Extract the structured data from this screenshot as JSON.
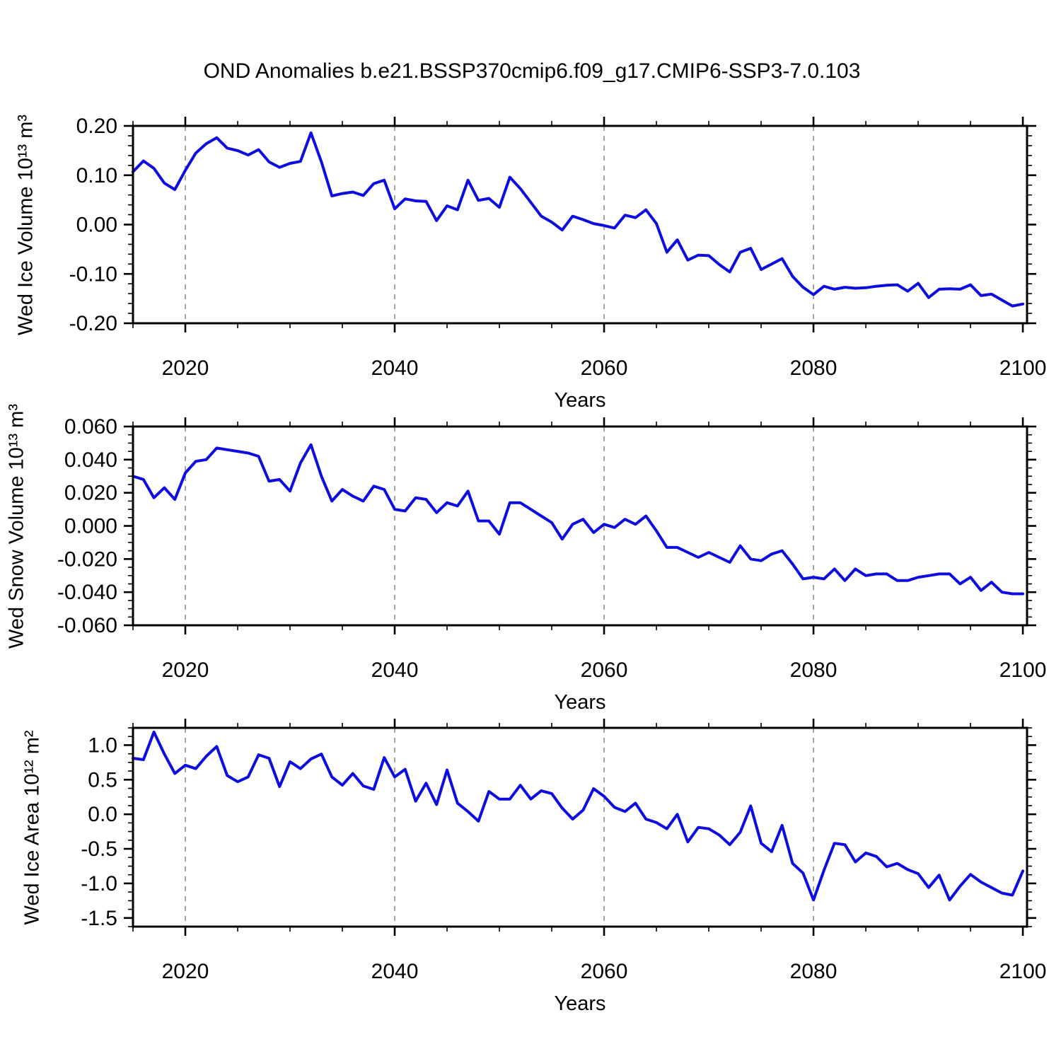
{
  "title": "OND Anomalies b.e21.BSSP370cmip6.f09_g17.CMIP6-SSP3-7.0.103",
  "xlabel": "Years",
  "colors": {
    "line": "#0d0ddf",
    "grid": "#888888",
    "axis": "#000000"
  },
  "x": {
    "years_start": 2015,
    "years_step": 1,
    "ticks_major": [
      2020,
      2040,
      2060,
      2080,
      2100
    ],
    "tick_labels": [
      "2020",
      "2040",
      "2060",
      "2080",
      "2100"
    ],
    "minor_start": 2015,
    "minor_step": 5,
    "grid_years": [
      2020,
      2040,
      2060,
      2080
    ]
  },
  "chart_data": [
    {
      "type": "line",
      "name": "wed-ice-volume",
      "ylabel": "Wed Ice Volume 10¹³ m³",
      "ylim": [
        -0.2,
        0.2
      ],
      "yticks": [
        0.2,
        0.1,
        0.0,
        -0.1,
        -0.2
      ],
      "ytick_labels": [
        "0.20",
        "0.10",
        "0.00",
        "-0.10",
        "-0.20"
      ],
      "yminor": 0.02,
      "values": [
        0.107,
        0.129,
        0.114,
        0.084,
        0.071,
        0.11,
        0.145,
        0.164,
        0.176,
        0.155,
        0.15,
        0.141,
        0.152,
        0.127,
        0.116,
        0.124,
        0.128,
        0.186,
        0.127,
        0.058,
        0.063,
        0.066,
        0.059,
        0.083,
        0.09,
        0.032,
        0.052,
        0.048,
        0.047,
        0.008,
        0.038,
        0.03,
        0.09,
        0.049,
        0.053,
        0.035,
        0.096,
        0.073,
        0.045,
        0.017,
        0.005,
        -0.011,
        0.017,
        0.01,
        0.002,
        -0.002,
        -0.007,
        0.019,
        0.014,
        0.03,
        0.002,
        -0.056,
        -0.031,
        -0.072,
        -0.062,
        -0.063,
        -0.081,
        -0.096,
        -0.056,
        -0.048,
        -0.091,
        -0.08,
        -0.069,
        -0.105,
        -0.127,
        -0.142,
        -0.125,
        -0.131,
        -0.127,
        -0.129,
        -0.128,
        -0.125,
        -0.123,
        -0.122,
        -0.135,
        -0.119,
        -0.148,
        -0.131,
        -0.13,
        -0.131,
        -0.122,
        -0.144,
        -0.141,
        -0.153,
        -0.165,
        -0.161
      ]
    },
    {
      "type": "line",
      "name": "wed-snow-volume",
      "ylabel": "Wed Snow Volume 10¹³ m³",
      "ylim": [
        -0.06,
        0.06
      ],
      "yticks": [
        0.06,
        0.04,
        0.02,
        0.0,
        -0.02,
        -0.04,
        -0.06
      ],
      "ytick_labels": [
        "0.060",
        "0.040",
        "0.020",
        "0.000",
        "-0.020",
        "-0.040",
        "-0.060"
      ],
      "yminor": 0.005,
      "values": [
        0.03,
        0.028,
        0.017,
        0.023,
        0.016,
        0.032,
        0.039,
        0.04,
        0.047,
        0.046,
        0.045,
        0.044,
        0.042,
        0.027,
        0.028,
        0.021,
        0.038,
        0.049,
        0.03,
        0.015,
        0.022,
        0.018,
        0.015,
        0.024,
        0.022,
        0.01,
        0.009,
        0.017,
        0.016,
        0.008,
        0.014,
        0.012,
        0.021,
        0.003,
        0.003,
        -0.005,
        0.014,
        0.014,
        0.01,
        0.006,
        0.002,
        -0.008,
        0.001,
        0.004,
        -0.004,
        0.001,
        -0.001,
        0.004,
        0.001,
        0.006,
        -0.003,
        -0.013,
        -0.013,
        -0.016,
        -0.019,
        -0.016,
        -0.019,
        -0.022,
        -0.012,
        -0.02,
        -0.021,
        -0.017,
        -0.015,
        -0.023,
        -0.032,
        -0.031,
        -0.032,
        -0.026,
        -0.033,
        -0.026,
        -0.03,
        -0.029,
        -0.029,
        -0.033,
        -0.033,
        -0.031,
        -0.03,
        -0.029,
        -0.029,
        -0.035,
        -0.031,
        -0.039,
        -0.034,
        -0.04,
        -0.041,
        -0.041
      ]
    },
    {
      "type": "line",
      "name": "wed-ice-area",
      "ylabel": "Wed Ice Area 10¹² m²",
      "ylim": [
        -1.625,
        1.25
      ],
      "yticks": [
        1.0,
        0.5,
        0.0,
        -0.5,
        -1.0,
        -1.5
      ],
      "ytick_labels": [
        "1.0",
        "0.5",
        "0.0",
        "-0.5",
        "-1.0",
        "-1.5"
      ],
      "yminor": 0.125,
      "values": [
        0.81,
        0.79,
        1.19,
        0.87,
        0.59,
        0.71,
        0.66,
        0.84,
        0.98,
        0.56,
        0.47,
        0.54,
        0.86,
        0.81,
        0.4,
        0.76,
        0.66,
        0.8,
        0.87,
        0.54,
        0.42,
        0.59,
        0.41,
        0.36,
        0.82,
        0.54,
        0.65,
        0.19,
        0.45,
        0.14,
        0.64,
        0.16,
        0.04,
        -0.1,
        0.33,
        0.22,
        0.22,
        0.42,
        0.22,
        0.34,
        0.3,
        0.09,
        -0.07,
        0.06,
        0.37,
        0.26,
        0.1,
        0.04,
        0.16,
        -0.07,
        -0.12,
        -0.21,
        0.0,
        -0.4,
        -0.19,
        -0.21,
        -0.3,
        -0.44,
        -0.26,
        0.12,
        -0.42,
        -0.54,
        -0.16,
        -0.71,
        -0.85,
        -1.24,
        -0.81,
        -0.42,
        -0.44,
        -0.69,
        -0.56,
        -0.61,
        -0.76,
        -0.71,
        -0.8,
        -0.86,
        -1.06,
        -0.88,
        -1.24,
        -1.04,
        -0.87,
        -0.98,
        -1.06,
        -1.14,
        -1.17,
        -0.82
      ]
    }
  ]
}
